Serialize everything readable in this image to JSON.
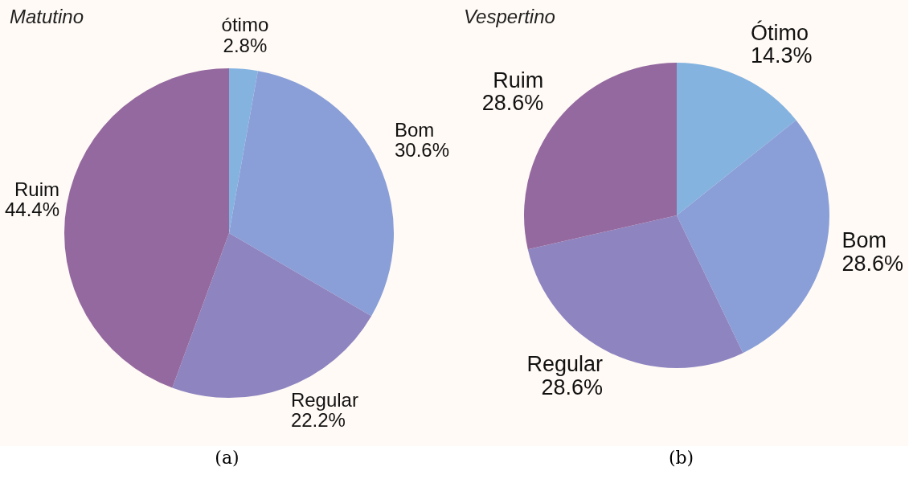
{
  "chart_data": [
    {
      "type": "pie",
      "title": "Matutino",
      "categories": [
        "ótimo",
        "Bom",
        "Regular",
        "Ruim"
      ],
      "values": [
        2.8,
        30.6,
        22.2,
        44.4
      ],
      "value_labels": [
        "2.8%",
        "30.6%",
        "22.2%",
        "44.4%"
      ],
      "colors": [
        "#85b3e0",
        "#8a9fd8",
        "#8e84c0",
        "#94699f"
      ],
      "legend": false,
      "annotations": [
        "(a)"
      ]
    },
    {
      "type": "pie",
      "title": "Vespertino",
      "categories": [
        "Ótimo",
        "Bom",
        "Regular",
        "Ruim"
      ],
      "values": [
        14.3,
        28.6,
        28.6,
        28.6
      ],
      "value_labels": [
        "14.3%",
        "28.6%",
        "28.6%",
        "28.6%"
      ],
      "colors": [
        "#85b3e0",
        "#8a9fd8",
        "#8e84c0",
        "#94699f"
      ],
      "legend": false,
      "annotations": [
        "(b)"
      ]
    }
  ]
}
